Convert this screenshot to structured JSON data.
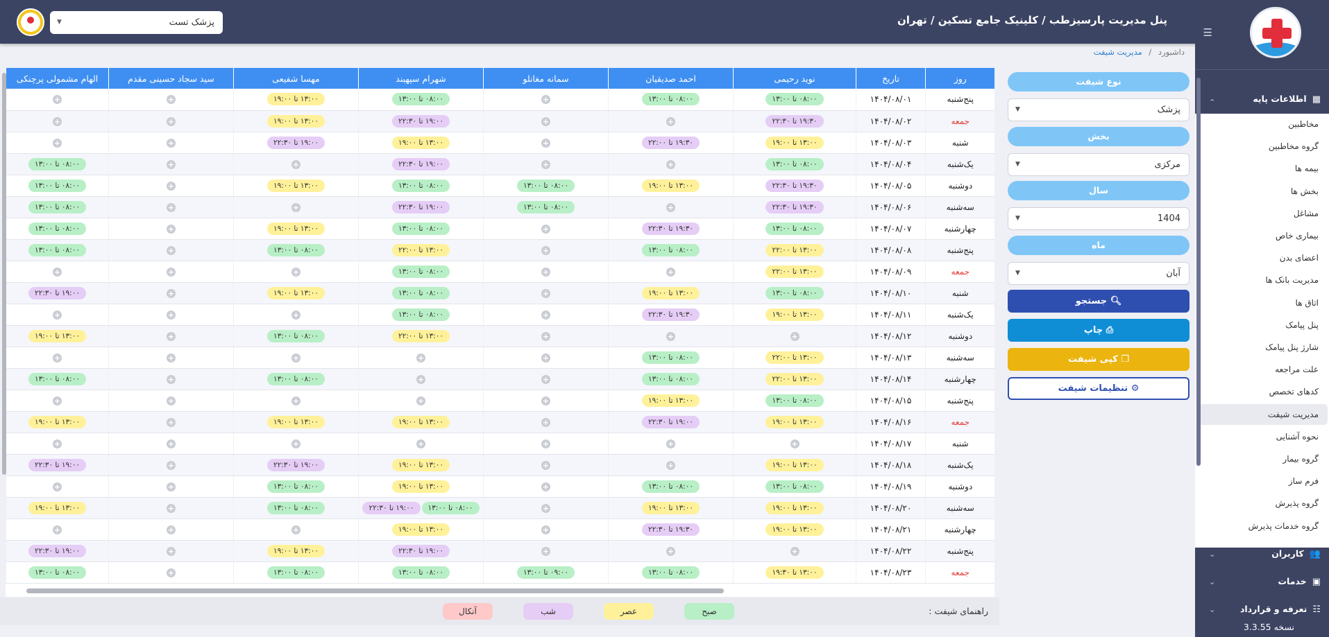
{
  "header": {
    "title": "پنل مدیریت پارسیزطب / کلینیک جامع تسکین / تهران",
    "user_select": "پزشک تست"
  },
  "breadcrumb": {
    "home": "داشبورد",
    "sep": "/",
    "current": "مدیریت شیفت"
  },
  "sidebar": {
    "base_info": "اطلاعات پایه",
    "items": [
      "مخاطبین",
      "گروه مخاطبین",
      "بیمه ها",
      "بخش ها",
      "مشاغل",
      "بیماری خاص",
      "اعضای بدن",
      "مدیریت بانک ها",
      "اتاق ها",
      "پنل پیامک",
      "شارژ پنل پیامک",
      "علت مراجعه",
      "کدهای تخصص",
      "مدیریت شیفت",
      "نحوه آشنایی",
      "گروه بیمار",
      "فرم ساز",
      "گروه پذیرش",
      "گروه خدمات پذیرش"
    ],
    "active_index": 13,
    "users": "کاربران",
    "services": "خدمات",
    "tariffs": "تعرفه و قرارداد",
    "version": "نسخه 3.3.55"
  },
  "filters": {
    "shift_type_label": "نوع شیفت",
    "shift_type_value": "پزشک",
    "dept_label": "بخش",
    "dept_value": "مرکزی",
    "year_label": "سال",
    "year_value": "1404",
    "month_label": "ماه",
    "month_value": "آبان",
    "search": "جستجو",
    "print": "چاپ",
    "copy": "کپی شیفت",
    "settings": "تنظیمات شیفت"
  },
  "colors": {
    "morning": "#b8efc6",
    "afternoon": "#fff19a",
    "night": "#e5cdf6",
    "oncall": "#ffc9c9",
    "primary": "#3f8ff2",
    "search": "#2f4fb0",
    "print": "#0f8ed6",
    "copy": "#ebb40f"
  },
  "table": {
    "headers": [
      "روز",
      "تاریخ",
      "نوید رحیمی",
      "احمد صدیقیان",
      "سمانه مغانلو",
      "شهرام سپهبند",
      "مهسا شفیعی",
      "سید سجاد حسینی مقدم",
      "الهام مشمولی پرچنکی"
    ],
    "rows": [
      {
        "day": "پنج‌شنبه",
        "date": "۱۴۰۴/۰۸/۰۱",
        "cells": [
          [
            "۰۸:۰۰ تا ۱۳:۰۰"
          ],
          [
            "۰۸:۰۰ تا ۱۳:۰۰"
          ],
          [],
          [
            "۰۸:۰۰ تا ۱۳:۰۰"
          ],
          [
            "۱۳:۰۰ تا ۱۹:۰۰"
          ],
          [],
          []
        ]
      },
      {
        "day": "جمعه",
        "date": "۱۴۰۴/۰۸/۰۲",
        "cells": [
          [
            "۱۹:۳۰ تا ۲۲:۳۰"
          ],
          [],
          [],
          [
            "۱۹:۰۰ تا ۲۲:۳۰"
          ],
          [
            "۱۳:۰۰ تا ۱۹:۰۰"
          ],
          [],
          []
        ]
      },
      {
        "day": "شنبه",
        "date": "۱۴۰۴/۰۸/۰۳",
        "cells": [
          [
            "۱۳:۰۰ تا ۱۹:۰۰"
          ],
          [
            "۱۹:۳۰ تا ۲۲:۰۰"
          ],
          [],
          [
            "۱۳:۰۰ تا ۱۹:۰۰"
          ],
          [
            "۱۹:۰۰ تا ۲۲:۳۰"
          ],
          [],
          []
        ]
      },
      {
        "day": "یک‌شنبه",
        "date": "۱۴۰۴/۰۸/۰۴",
        "cells": [
          [
            "۰۸:۰۰ تا ۱۳:۰۰"
          ],
          [],
          [],
          [
            "۱۹:۰۰ تا ۲۲:۳۰"
          ],
          [],
          [],
          [
            "۰۸:۰۰ تا ۱۳:۰۰"
          ]
        ]
      },
      {
        "day": "دوشنبه",
        "date": "۱۴۰۴/۰۸/۰۵",
        "cells": [
          [
            "۱۹:۳۰ تا ۲۲:۳۰"
          ],
          [
            "۱۳:۰۰ تا ۱۹:۰۰"
          ],
          [
            "۰۸:۰۰ تا ۱۳:۰۰"
          ],
          [
            "۰۸:۰۰ تا ۱۳:۰۰"
          ],
          [
            "۱۳:۰۰ تا ۱۹:۰۰"
          ],
          [],
          [
            "۰۸:۰۰ تا ۱۳:۰۰"
          ]
        ]
      },
      {
        "day": "سه‌شنبه",
        "date": "۱۴۰۴/۰۸/۰۶",
        "cells": [
          [
            "۱۹:۳۰ تا ۲۲:۳۰"
          ],
          [],
          [
            "۰۸:۰۰ تا ۱۳:۰۰"
          ],
          [
            "۱۹:۰۰ تا ۲۲:۳۰"
          ],
          [],
          [],
          [
            "۰۸:۰۰ تا ۱۳:۰۰"
          ]
        ]
      },
      {
        "day": "چهارشنبه",
        "date": "۱۴۰۴/۰۸/۰۷",
        "cells": [
          [
            "۰۸:۰۰ تا ۱۳:۰۰"
          ],
          [
            "۱۹:۳۰ تا ۲۲:۳۰"
          ],
          [],
          [
            "۰۸:۰۰ تا ۱۳:۰۰"
          ],
          [
            "۱۳:۰۰ تا ۱۹:۰۰"
          ],
          [],
          [
            "۰۸:۰۰ تا ۱۳:۰۰"
          ]
        ]
      },
      {
        "day": "پنج‌شنبه",
        "date": "۱۴۰۴/۰۸/۰۸",
        "cells": [
          [
            "۱۳:۰۰ تا ۲۲:۰۰"
          ],
          [
            "۰۸:۰۰ تا ۱۳:۰۰"
          ],
          [],
          [
            "۱۳:۰۰ تا ۲۲:۰۰"
          ],
          [
            "۰۸:۰۰ تا ۱۳:۰۰"
          ],
          [],
          [
            "۰۸:۰۰ تا ۱۳:۰۰"
          ]
        ]
      },
      {
        "day": "جمعه",
        "date": "۱۴۰۴/۰۸/۰۹",
        "cells": [
          [
            "۱۳:۰۰ تا ۲۲:۰۰"
          ],
          [],
          [],
          [
            "۰۸:۰۰ تا ۱۳:۰۰"
          ],
          [],
          [],
          []
        ]
      },
      {
        "day": "شنبه",
        "date": "۱۴۰۴/۰۸/۱۰",
        "cells": [
          [
            "۰۸:۰۰ تا ۱۳:۰۰"
          ],
          [
            "۱۳:۰۰ تا ۱۹:۰۰"
          ],
          [],
          [
            "۰۸:۰۰ تا ۱۳:۰۰"
          ],
          [
            "۱۳:۰۰ تا ۱۹:۰۰"
          ],
          [],
          [
            "۱۹:۰۰ تا ۲۲:۳۰"
          ]
        ]
      },
      {
        "day": "یک‌شنبه",
        "date": "۱۴۰۴/۰۸/۱۱",
        "cells": [
          [
            "۱۳:۰۰ تا ۱۹:۰۰"
          ],
          [
            "۱۹:۳۰ تا ۲۲:۳۰"
          ],
          [],
          [
            "۰۸:۰۰ تا ۱۳:۰۰"
          ],
          [],
          [],
          []
        ]
      },
      {
        "day": "دوشنبه",
        "date": "۱۴۰۴/۰۸/۱۲",
        "cells": [
          [],
          [],
          [],
          [
            "۱۳:۰۰ تا ۲۲:۰۰"
          ],
          [
            "۰۸:۰۰ تا ۱۳:۰۰"
          ],
          [],
          [
            "۱۳:۰۰ تا ۱۹:۰۰"
          ]
        ]
      },
      {
        "day": "سه‌شنبه",
        "date": "۱۴۰۴/۰۸/۱۳",
        "cells": [
          [
            "۱۳:۰۰ تا ۲۲:۰۰"
          ],
          [
            "۰۸:۰۰ تا ۱۳:۰۰"
          ],
          [],
          [],
          [],
          [],
          []
        ]
      },
      {
        "day": "چهارشنبه",
        "date": "۱۴۰۴/۰۸/۱۴",
        "cells": [
          [
            "۱۳:۰۰ تا ۲۲:۰۰"
          ],
          [
            "۰۸:۰۰ تا ۱۳:۰۰"
          ],
          [],
          [],
          [
            "۰۸:۰۰ تا ۱۳:۰۰"
          ],
          [],
          [
            "۰۸:۰۰ تا ۱۳:۰۰"
          ]
        ]
      },
      {
        "day": "پنج‌شنبه",
        "date": "۱۴۰۴/۰۸/۱۵",
        "cells": [
          [
            "۰۸:۰۰ تا ۱۳:۰۰"
          ],
          [
            "۱۳:۰۰ تا ۱۹:۰۰"
          ],
          [],
          [],
          [],
          [],
          []
        ]
      },
      {
        "day": "جمعه",
        "date": "۱۴۰۴/۰۸/۱۶",
        "cells": [
          [
            "۱۳:۰۰ تا ۱۹:۰۰"
          ],
          [
            "۱۹:۰۰ تا ۲۲:۳۰"
          ],
          [],
          [
            "۱۳:۰۰ تا ۱۹:۰۰"
          ],
          [
            "۱۳:۰۰ تا ۱۹:۰۰"
          ],
          [],
          [
            "۱۳:۰۰ تا ۱۹:۰۰"
          ]
        ]
      },
      {
        "day": "شنبه",
        "date": "۱۴۰۴/۰۸/۱۷",
        "cells": [
          [],
          [],
          [],
          [],
          [],
          [],
          []
        ]
      },
      {
        "day": "یک‌شنبه",
        "date": "۱۴۰۴/۰۸/۱۸",
        "cells": [
          [
            "۱۳:۰۰ تا ۱۹:۰۰"
          ],
          [],
          [],
          [
            "۱۳:۰۰ تا ۱۹:۰۰"
          ],
          [
            "۱۹:۰۰ تا ۲۲:۳۰"
          ],
          [],
          [
            "۱۹:۰۰ تا ۲۲:۳۰"
          ]
        ]
      },
      {
        "day": "دوشنبه",
        "date": "۱۴۰۴/۰۸/۱۹",
        "cells": [
          [
            "۰۸:۰۰ تا ۱۳:۰۰"
          ],
          [
            "۰۸:۰۰ تا ۱۳:۰۰"
          ],
          [],
          [
            "۱۳:۰۰ تا ۱۹:۰۰"
          ],
          [
            "۰۸:۰۰ تا ۱۳:۰۰"
          ],
          [],
          []
        ]
      },
      {
        "day": "سه‌شنبه",
        "date": "۱۴۰۴/۰۸/۲۰",
        "cells": [
          [
            "۱۳:۰۰ تا ۱۹:۰۰"
          ],
          [
            "۱۳:۰۰ تا ۱۹:۰۰"
          ],
          [],
          [
            "۰۸:۰۰ تا ۱۳:۰۰",
            "۱۹:۰۰ تا ۲۲:۳۰"
          ],
          [
            "۰۸:۰۰ تا ۱۳:۰۰"
          ],
          [],
          [
            "۱۳:۰۰ تا ۱۹:۰۰"
          ]
        ]
      },
      {
        "day": "چهارشنبه",
        "date": "۱۴۰۴/۰۸/۲۱",
        "cells": [
          [
            "۱۳:۰۰ تا ۱۹:۰۰"
          ],
          [
            "۱۹:۳۰ تا ۲۲:۳۰"
          ],
          [],
          [
            "۱۳:۰۰ تا ۱۹:۰۰"
          ],
          [],
          [],
          []
        ]
      },
      {
        "day": "پنج‌شنبه",
        "date": "۱۴۰۴/۰۸/۲۲",
        "cells": [
          [],
          [],
          [],
          [
            "۱۹:۰۰ تا ۲۲:۳۰"
          ],
          [
            "۱۳:۰۰ تا ۱۹:۰۰"
          ],
          [],
          [
            "۱۹:۰۰ تا ۲۲:۳۰"
          ]
        ]
      },
      {
        "day": "جمعه",
        "date": "۱۴۰۴/۰۸/۲۳",
        "cells": [
          [
            "۱۳:۰۰ تا ۱۹:۳۰"
          ],
          [
            "۰۸:۰۰ تا ۱۳:۰۰"
          ],
          [
            "۰۹:۰۰ تا ۱۳:۰۰"
          ],
          [
            "۰۸:۰۰ تا ۱۳:۰۰"
          ],
          [
            "۰۸:۰۰ تا ۱۳:۰۰"
          ],
          [],
          [
            "۰۸:۰۰ تا ۱۳:۰۰"
          ]
        ]
      }
    ]
  },
  "legend": {
    "title": "راهنمای شیفت :",
    "morning": "صبح",
    "afternoon": "عصر",
    "night": "شب",
    "oncall": "آنکال"
  }
}
